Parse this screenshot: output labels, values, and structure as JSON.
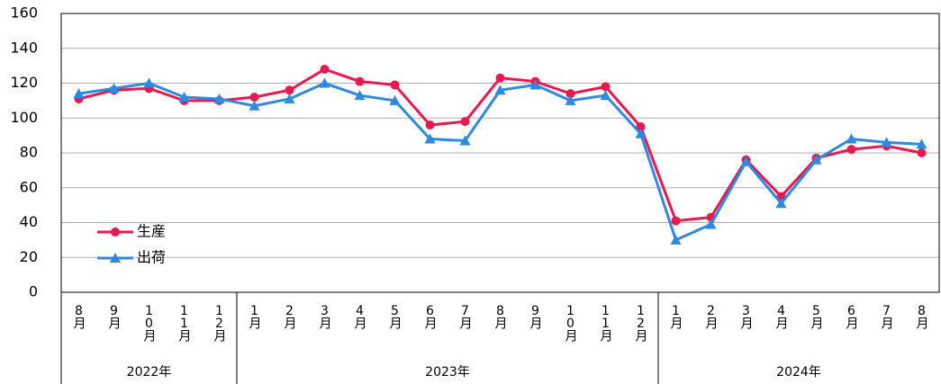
{
  "chart_data": {
    "type": "line",
    "categories": [
      "8月",
      "9月",
      "10月",
      "11月",
      "12月",
      "1月",
      "2月",
      "3月",
      "4月",
      "5月",
      "6月",
      "7月",
      "8月",
      "9月",
      "10月",
      "11月",
      "12月",
      "1月",
      "2月",
      "3月",
      "4月",
      "5月",
      "6月",
      "7月",
      "8月"
    ],
    "groups": [
      {
        "label": "2022年",
        "count": 5
      },
      {
        "label": "2023年",
        "count": 12
      },
      {
        "label": "2024年",
        "count": 8
      }
    ],
    "series": [
      {
        "name": "生産",
        "color": "#e8194e",
        "marker": "circle",
        "values": [
          111,
          116,
          117,
          110,
          110,
          112,
          116,
          128,
          121,
          119,
          96,
          98,
          123,
          121,
          114,
          118,
          95,
          41,
          43,
          76,
          55,
          77,
          82,
          84,
          80
        ]
      },
      {
        "name": "出荷",
        "color": "#2e8ae0",
        "marker": "triangle",
        "values": [
          114,
          117,
          120,
          112,
          111,
          107,
          111,
          120,
          113,
          110,
          88,
          87,
          116,
          119,
          110,
          113,
          91,
          30,
          39,
          75,
          51,
          76,
          88,
          86,
          85
        ]
      }
    ],
    "ylim": [
      0,
      160
    ],
    "yticks": [
      0,
      20,
      40,
      60,
      80,
      100,
      120,
      140,
      160
    ],
    "grid": true,
    "legend": "lower-left"
  }
}
